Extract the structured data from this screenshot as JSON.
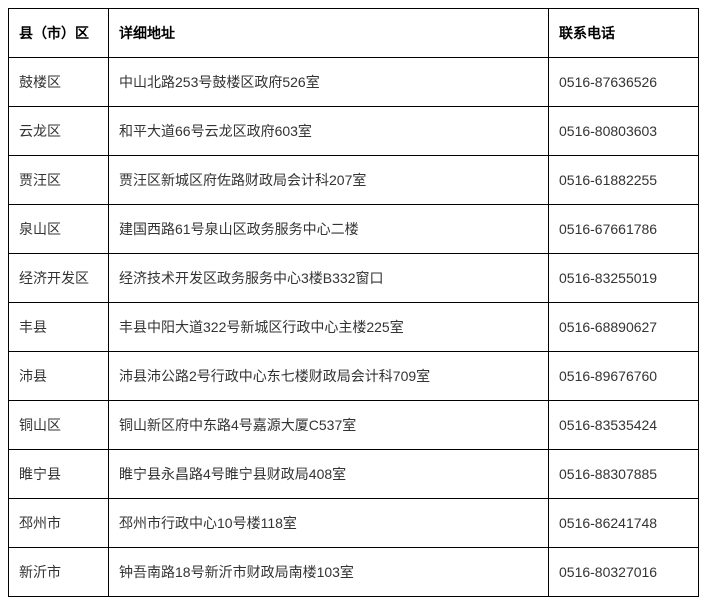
{
  "table": {
    "columns": [
      {
        "label": "县（市）区",
        "class": "col-district"
      },
      {
        "label": "详细地址",
        "class": "col-address"
      },
      {
        "label": "联系电话",
        "class": "col-phone"
      }
    ],
    "rows": [
      {
        "district": "鼓楼区",
        "address": "中山北路253号鼓楼区政府526室",
        "phone": "0516-87636526"
      },
      {
        "district": "云龙区",
        "address": "和平大道66号云龙区政府603室",
        "phone": "0516-80803603"
      },
      {
        "district": "贾汪区",
        "address": "贾汪区新城区府佐路财政局会计科207室",
        "phone": "0516-61882255"
      },
      {
        "district": "泉山区",
        "address": "建国西路61号泉山区政务服务中心二楼",
        "phone": "0516-67661786"
      },
      {
        "district": "经济开发区",
        "address": "经济技术开发区政务服务中心3楼B332窗口",
        "phone": "0516-83255019"
      },
      {
        "district": "丰县",
        "address": "丰县中阳大道322号新城区行政中心主楼225室",
        "phone": "0516-68890627"
      },
      {
        "district": "沛县",
        "address": "沛县沛公路2号行政中心东七楼财政局会计科709室",
        "phone": "0516-89676760"
      },
      {
        "district": "铜山区",
        "address": "铜山新区府中东路4号嘉源大厦C537室",
        "phone": "0516-83535424"
      },
      {
        "district": "睢宁县",
        "address": "睢宁县永昌路4号睢宁县财政局408室",
        "phone": "0516-88307885"
      },
      {
        "district": "邳州市",
        "address": "邳州市行政中心10号楼118室",
        "phone": "0516-86241748"
      },
      {
        "district": "新沂市",
        "address": "钟吾南路18号新沂市财政局南楼103室",
        "phone": "0516-80327016"
      }
    ],
    "border_color": "#000000",
    "background_color": "#ffffff",
    "text_color": "#333333",
    "header_text_color": "#000000",
    "font_size": 14,
    "cell_padding": "14px 10px"
  }
}
